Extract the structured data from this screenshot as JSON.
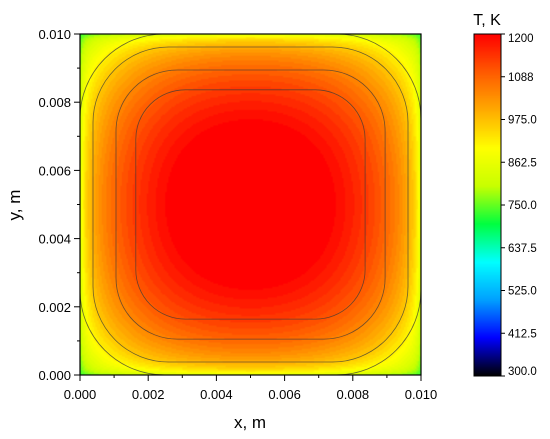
{
  "chart_data": {
    "type": "heatmap",
    "title": "",
    "xlabel": "x, m",
    "ylabel": "y, m",
    "xlim": [
      0,
      0.01
    ],
    "ylim": [
      0,
      0.01
    ],
    "x_ticks": [
      "0.000",
      "0.002",
      "0.004",
      "0.006",
      "0.008",
      "0.010"
    ],
    "y_ticks": [
      "0.000",
      "0.002",
      "0.004",
      "0.006",
      "0.008",
      "0.010"
    ],
    "field": {
      "description_of_shape": "square domain, hottest at center, cooling toward all edges",
      "center_value": 1200,
      "corner_value": 700,
      "edge_midpoint_value": 860,
      "plateau_extent_fraction": 0.25
    },
    "contour_levels": [
      780,
      1000,
      1090,
      1140
    ],
    "colorbar": {
      "title": "T, K",
      "min": 300,
      "max": 1200,
      "tick_labels": [
        "1200",
        "1088",
        "975.0",
        "862.5",
        "750.0",
        "637.5",
        "525.0",
        "412.5",
        "300.0"
      ],
      "tick_values": [
        1200,
        1087.5,
        975,
        862.5,
        750,
        637.5,
        525,
        412.5,
        300
      ],
      "colors": [
        "#000000",
        "#0000ff",
        "#00a0ff",
        "#00ffff",
        "#00ff40",
        "#c8ff00",
        "#ffff00",
        "#ffaa00",
        "#ff5a00",
        "#ff0000",
        "#ffffff"
      ]
    }
  }
}
